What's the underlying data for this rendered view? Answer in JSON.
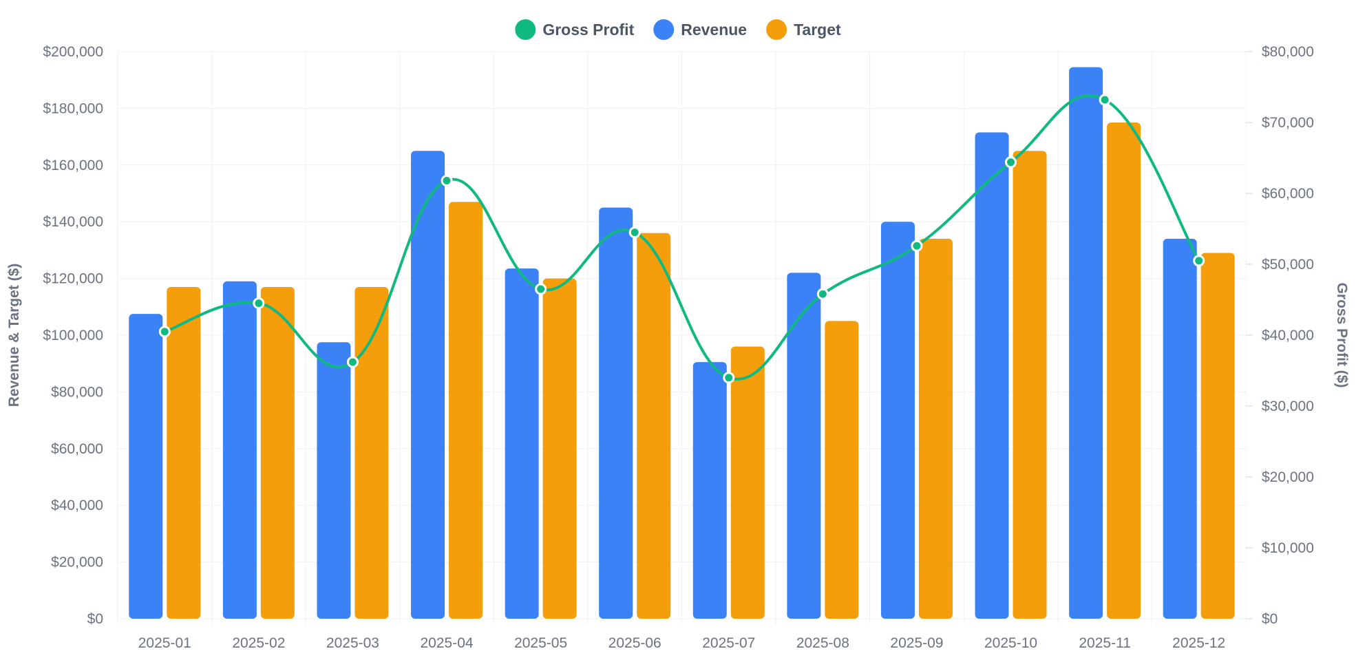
{
  "chart_data": {
    "type": "bar",
    "categories": [
      "2025-01",
      "2025-02",
      "2025-03",
      "2025-04",
      "2025-05",
      "2025-06",
      "2025-07",
      "2025-08",
      "2025-09",
      "2025-10",
      "2025-11",
      "2025-12"
    ],
    "series": [
      {
        "name": "Revenue",
        "type": "bar",
        "axis": "left",
        "color": "#3b82f6",
        "values": [
          107500,
          119000,
          97500,
          165000,
          123500,
          145000,
          90500,
          122000,
          140000,
          171500,
          194500,
          134000
        ]
      },
      {
        "name": "Target",
        "type": "bar",
        "axis": "left",
        "color": "#f59e0b",
        "values": [
          117000,
          117000,
          117000,
          147000,
          120000,
          136000,
          96000,
          105000,
          134000,
          165000,
          175000,
          129000
        ]
      },
      {
        "name": "Gross Profit",
        "type": "line",
        "axis": "right",
        "color": "#10b981",
        "values": [
          40500,
          44500,
          36200,
          61800,
          46500,
          54500,
          34000,
          45800,
          52600,
          64400,
          73200,
          50500
        ]
      }
    ],
    "legend": {
      "position": "top-center",
      "items": [
        {
          "name": "Gross Profit",
          "color": "#10b981"
        },
        {
          "name": "Revenue",
          "color": "#3b82f6"
        },
        {
          "name": "Target",
          "color": "#f59e0b"
        }
      ]
    },
    "y_left": {
      "label": "Revenue & Target ($)",
      "range": [
        0,
        200000
      ],
      "ticks": [
        "$0",
        "$20,000",
        "$40,000",
        "$60,000",
        "$80,000",
        "$100,000",
        "$120,000",
        "$140,000",
        "$160,000",
        "$180,000",
        "$200,000"
      ]
    },
    "y_right": {
      "label": "Gross Profit ($)",
      "range": [
        0,
        80000
      ],
      "ticks": [
        "$0",
        "$10,000",
        "$20,000",
        "$30,000",
        "$40,000",
        "$50,000",
        "$60,000",
        "$70,000",
        "$80,000"
      ]
    },
    "grid": true,
    "title": ""
  }
}
